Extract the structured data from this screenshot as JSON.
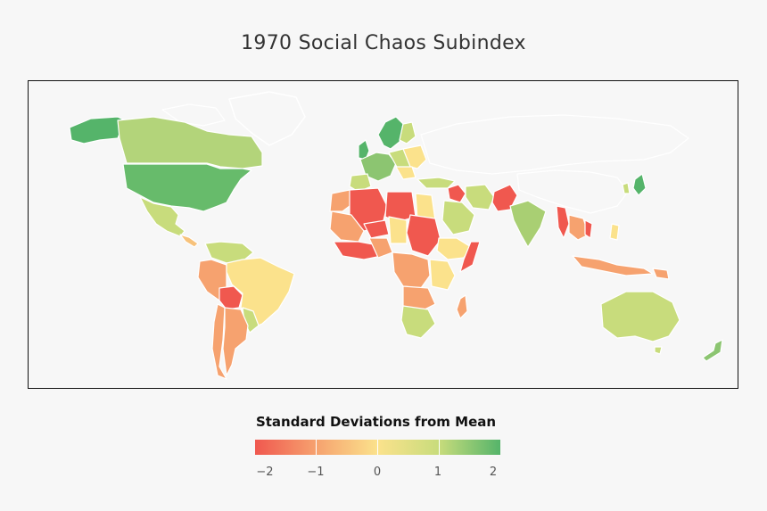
{
  "title": "1970 Social Chaos Subindex",
  "legend": {
    "title": "Standard Deviations from Mean",
    "ticks": [
      "−2",
      "−1",
      "0",
      "1",
      "2"
    ],
    "colors": {
      "m2": "#f0584f",
      "m1": "#f6a26f",
      "zero": "#fbe28c",
      "p1": "#c8dc7c",
      "p2": "#55b46a",
      "nodata": "#f7f7f7",
      "border": "#ffffff"
    }
  }
}
